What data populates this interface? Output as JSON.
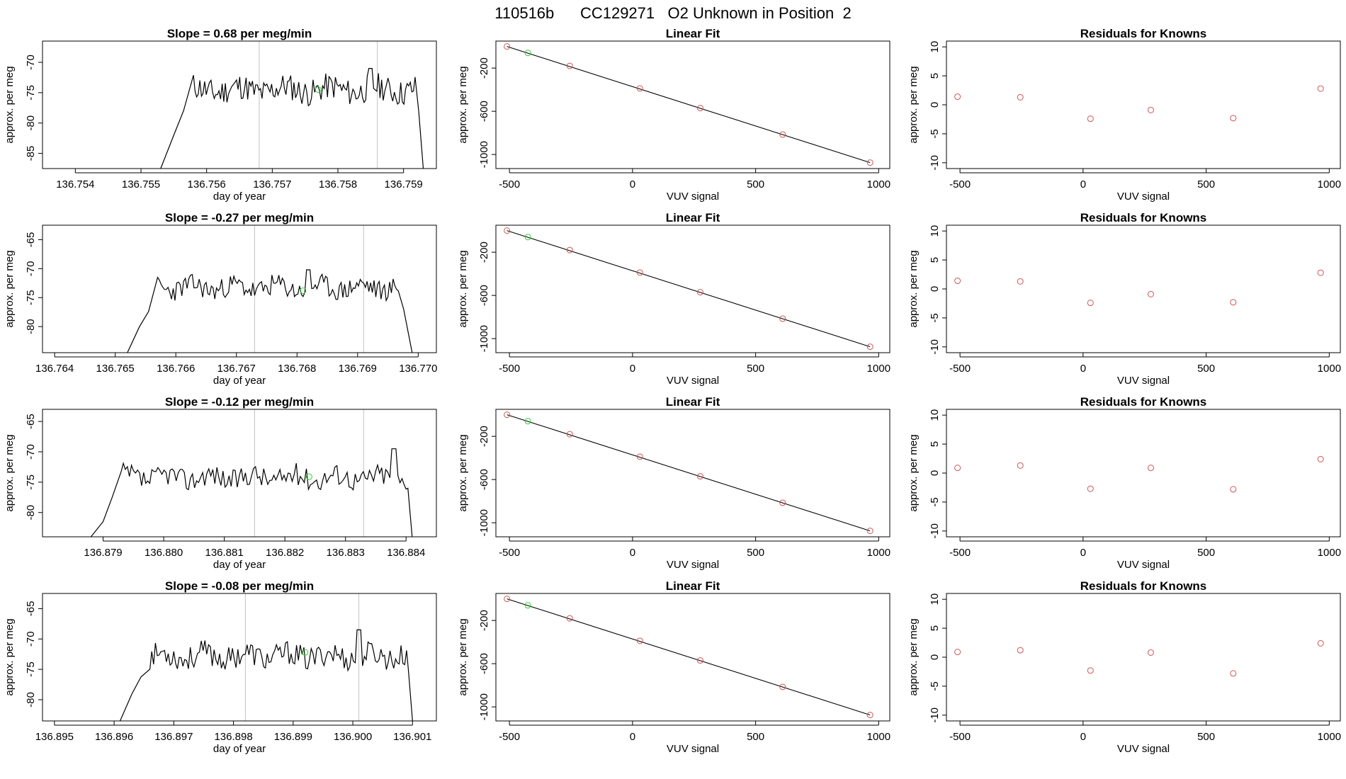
{
  "figure": {
    "title": "110516b      CC129271   O2 Unknown in Position  2",
    "colors": {
      "line": "#000000",
      "vline": "#cccccc",
      "known": "#cd5555",
      "unknown": "#33cc33",
      "fit": "#000000"
    }
  },
  "chart_data": [
    {
      "type": "line",
      "title": "Slope =  0.68  per meg/min",
      "xlabel": "day of year",
      "ylabel": "approx. per meg",
      "xlim": [
        136.7535,
        136.7595
      ],
      "ylim": [
        -87.5,
        -66.5
      ],
      "xticks": [
        "136.754",
        "136.755",
        "136.756",
        "136.757",
        "136.758",
        "136.759"
      ],
      "yticks": [
        "-85",
        "-80",
        "-75",
        "-70"
      ],
      "vlines": [
        136.7568,
        136.7586
      ],
      "signal": {
        "x_start": 136.7553,
        "x_end": 136.7593,
        "y_start": -87.5,
        "rise_to": -82,
        "rise_end": 136.7555,
        "plateau_start": 136.7558,
        "level": -74.5,
        "amp": 2.2,
        "peak_x": 136.7585,
        "peak_y": -71,
        "fall_from": -78,
        "fall_start": 136.7592,
        "y_end": -87.5,
        "seed": 11
      },
      "marker": {
        "x": 136.7577,
        "y": -74.5
      }
    },
    {
      "type": "scatter",
      "title": "Linear Fit",
      "xlabel": "VUV signal",
      "ylabel": "approx. per meg",
      "xlim": [
        -555,
        1045
      ],
      "ylim": [
        -1130,
        50
      ],
      "xticks": [
        "-500",
        "0",
        "500",
        "1000"
      ],
      "yticks": [
        "-1000",
        "-600",
        "-200"
      ],
      "fit": {
        "x": [
          -510,
          965
        ],
        "y": [
          0,
          -1075
        ]
      },
      "knowns": {
        "x": [
          -510,
          -255,
          30,
          275,
          610,
          965
        ],
        "y": [
          0,
          -180,
          -388,
          -570,
          -815,
          -1075
        ]
      },
      "unknown": {
        "x": [
          -425
        ],
        "y": [
          -60
        ]
      }
    },
    {
      "type": "scatter",
      "title": "Residuals for Knowns",
      "xlabel": "VUV signal",
      "ylabel": "approx. per meg",
      "xlim": [
        -555,
        1045
      ],
      "ylim": [
        -11,
        11
      ],
      "xticks": [
        "-500",
        "0",
        "500",
        "1000"
      ],
      "yticks": [
        "-10",
        "-5",
        "0",
        "5",
        "10"
      ],
      "knowns": {
        "x": [
          -510,
          -255,
          30,
          275,
          610,
          965
        ],
        "y": [
          1.4,
          1.3,
          -2.4,
          -0.9,
          -2.3,
          2.8
        ]
      }
    },
    {
      "type": "line",
      "title": "Slope =  -0.27  per meg/min",
      "xlabel": "day of year",
      "ylabel": "approx. per meg",
      "xlim": [
        136.7638,
        136.7703
      ],
      "ylim": [
        -84.5,
        -62.5
      ],
      "xticks": [
        "136.764",
        "136.765",
        "136.766",
        "136.767",
        "136.768",
        "136.769",
        "136.770"
      ],
      "yticks": [
        "-80",
        "-75",
        "-70",
        "-65"
      ],
      "vlines": [
        136.7673,
        136.7691
      ],
      "signal": {
        "x_start": 136.7652,
        "x_end": 136.7699,
        "y_start": -84.5,
        "rise_to": -80,
        "rise_end": 136.7654,
        "plateau_start": 136.7657,
        "level": -73.3,
        "amp": 1.8,
        "peak_x": 136.7682,
        "peak_y": -70.2,
        "fall_from": -77,
        "fall_start": 136.7697,
        "y_end": -84.5,
        "seed": 23
      },
      "marker": {
        "x": 136.7681,
        "y": -73.8
      }
    },
    {
      "type": "scatter",
      "title": "Linear Fit",
      "xlabel": "VUV signal",
      "ylabel": "approx. per meg",
      "xlim": [
        -555,
        1045
      ],
      "ylim": [
        -1130,
        50
      ],
      "xticks": [
        "-500",
        "0",
        "500",
        "1000"
      ],
      "yticks": [
        "-1000",
        "-600",
        "-200"
      ],
      "fit": {
        "x": [
          -510,
          965
        ],
        "y": [
          0,
          -1075
        ]
      },
      "knowns": {
        "x": [
          -510,
          -255,
          30,
          275,
          610,
          965
        ],
        "y": [
          0,
          -180,
          -388,
          -570,
          -815,
          -1075
        ]
      },
      "unknown": {
        "x": [
          -425
        ],
        "y": [
          -60
        ]
      }
    },
    {
      "type": "scatter",
      "title": "Residuals for Knowns",
      "xlabel": "VUV signal",
      "ylabel": "approx. per meg",
      "xlim": [
        -555,
        1045
      ],
      "ylim": [
        -11,
        11
      ],
      "xticks": [
        "-500",
        "0",
        "500",
        "1000"
      ],
      "yticks": [
        "-10",
        "-5",
        "0",
        "5",
        "10"
      ],
      "knowns": {
        "x": [
          -510,
          -255,
          30,
          275,
          610,
          965
        ],
        "y": [
          1.4,
          1.3,
          -2.4,
          -0.9,
          -2.3,
          2.8
        ]
      }
    },
    {
      "type": "line",
      "title": "Slope =  -0.12  per meg/min",
      "xlabel": "day of year",
      "ylabel": "approx. per meg",
      "xlim": [
        136.878,
        136.8845
      ],
      "ylim": [
        -84,
        -63
      ],
      "xticks": [
        "136.879",
        "136.880",
        "136.881",
        "136.882",
        "136.883",
        "136.884"
      ],
      "yticks": [
        "-80",
        "-75",
        "-70",
        "-65"
      ],
      "vlines": [
        136.8815,
        136.8833
      ],
      "signal": {
        "x_start": 136.8788,
        "x_end": 136.8841,
        "y_start": -84,
        "rise_to": -81.5,
        "rise_end": 136.879,
        "plateau_start": 136.8793,
        "level": -74.2,
        "amp": 1.8,
        "peak_x": 136.8838,
        "peak_y": -69.5,
        "fall_from": -76,
        "fall_start": 136.884,
        "y_end": -84,
        "seed": 37
      },
      "marker": {
        "x": 136.8824,
        "y": -74.1
      }
    },
    {
      "type": "scatter",
      "title": "Linear Fit",
      "xlabel": "VUV signal",
      "ylabel": "approx. per meg",
      "xlim": [
        -555,
        1045
      ],
      "ylim": [
        -1130,
        50
      ],
      "xticks": [
        "-500",
        "0",
        "500",
        "1000"
      ],
      "yticks": [
        "-1000",
        "-600",
        "-200"
      ],
      "fit": {
        "x": [
          -510,
          965
        ],
        "y": [
          0,
          -1075
        ]
      },
      "knowns": {
        "x": [
          -510,
          -255,
          30,
          275,
          610,
          965
        ],
        "y": [
          0,
          -180,
          -388,
          -570,
          -815,
          -1075
        ]
      },
      "unknown": {
        "x": [
          -425
        ],
        "y": [
          -60
        ]
      }
    },
    {
      "type": "scatter",
      "title": "Residuals for Knowns",
      "xlabel": "VUV signal",
      "ylabel": "approx. per meg",
      "xlim": [
        -555,
        1045
      ],
      "ylim": [
        -11,
        11
      ],
      "xticks": [
        "-500",
        "0",
        "500",
        "1000"
      ],
      "yticks": [
        "-10",
        "-5",
        "0",
        "5",
        "10"
      ],
      "knowns": {
        "x": [
          -510,
          -255,
          30,
          275,
          610,
          965
        ],
        "y": [
          0.9,
          1.3,
          -2.7,
          0.9,
          -2.8,
          2.4
        ]
      }
    },
    {
      "type": "line",
      "title": "Slope =  -0.08  per meg/min",
      "xlabel": "day of year",
      "ylabel": "approx. per meg",
      "xlim": [
        136.8948,
        136.9014
      ],
      "ylim": [
        -83.5,
        -62.5
      ],
      "xticks": [
        "136.895",
        "136.896",
        "136.897",
        "136.898",
        "136.899",
        "136.900",
        "136.901"
      ],
      "yticks": [
        "-80",
        "-75",
        "-70",
        "-65"
      ],
      "vlines": [
        136.8982,
        136.9001
      ],
      "signal": {
        "x_start": 136.8961,
        "x_end": 136.901,
        "y_start": -83.5,
        "rise_to": -79,
        "rise_end": 136.8963,
        "plateau_start": 136.8966,
        "level": -72.8,
        "amp": 2.0,
        "peak_x": 136.9001,
        "peak_y": -68.5,
        "fall_from": -75,
        "fall_start": 136.9009,
        "y_end": -83.5,
        "seed": 53
      },
      "marker": {
        "x": 136.8992,
        "y": -72.2
      }
    },
    {
      "type": "scatter",
      "title": "Linear Fit",
      "xlabel": "VUV signal",
      "ylabel": "approx. per meg",
      "xlim": [
        -555,
        1045
      ],
      "ylim": [
        -1130,
        50
      ],
      "xticks": [
        "-500",
        "0",
        "500",
        "1000"
      ],
      "yticks": [
        "-1000",
        "-600",
        "-200"
      ],
      "fit": {
        "x": [
          -510,
          965
        ],
        "y": [
          0,
          -1075
        ]
      },
      "knowns": {
        "x": [
          -510,
          -255,
          30,
          275,
          610,
          965
        ],
        "y": [
          0,
          -180,
          -388,
          -570,
          -815,
          -1075
        ]
      },
      "unknown": {
        "x": [
          -425
        ],
        "y": [
          -60
        ]
      }
    },
    {
      "type": "scatter",
      "title": "Residuals for Knowns",
      "xlabel": "VUV signal",
      "ylabel": "approx. per meg",
      "xlim": [
        -555,
        1045
      ],
      "ylim": [
        -11,
        11
      ],
      "xticks": [
        "-500",
        "0",
        "500",
        "1000"
      ],
      "yticks": [
        "-10",
        "-5",
        "0",
        "5",
        "10"
      ],
      "knowns": {
        "x": [
          -510,
          -255,
          30,
          275,
          610,
          965
        ],
        "y": [
          0.9,
          1.2,
          -2.3,
          0.8,
          -2.8,
          2.4
        ]
      }
    }
  ]
}
